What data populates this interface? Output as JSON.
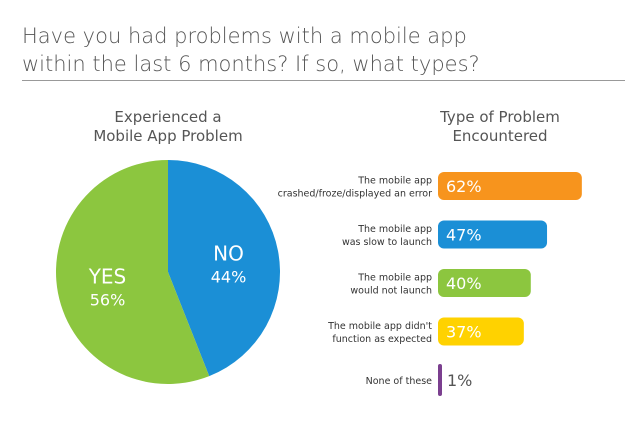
{
  "title_lines": [
    "Have you had problems with a mobile app",
    "within the last 6 months? If so, what types?"
  ],
  "chart_data": [
    {
      "type": "pie",
      "title_lines": [
        "Experienced a",
        "Mobile App Problem"
      ],
      "slices": [
        {
          "label": "NO",
          "value": 44,
          "display": "44%",
          "color": "#1b8fd6"
        },
        {
          "label": "YES",
          "value": 56,
          "display": "56%",
          "color": "#8cc63f"
        }
      ]
    },
    {
      "type": "bar",
      "orientation": "horizontal",
      "title_lines": [
        "Type of Problem",
        "Encountered"
      ],
      "categories": [
        [
          "The mobile app",
          "crashed/froze/displayed an error"
        ],
        [
          "The mobile app",
          "was slow to launch"
        ],
        [
          "The mobile app",
          "would not launch"
        ],
        [
          "The mobile app didn't",
          "function as expected"
        ],
        [
          "None of these"
        ]
      ],
      "values": [
        62,
        47,
        40,
        37,
        1
      ],
      "labels": [
        "62%",
        "47%",
        "40%",
        "37%",
        "1%"
      ],
      "colors": [
        "#f7941d",
        "#1b8fd6",
        "#8cc63f",
        "#ffd200",
        "#7b3f8f"
      ]
    }
  ]
}
